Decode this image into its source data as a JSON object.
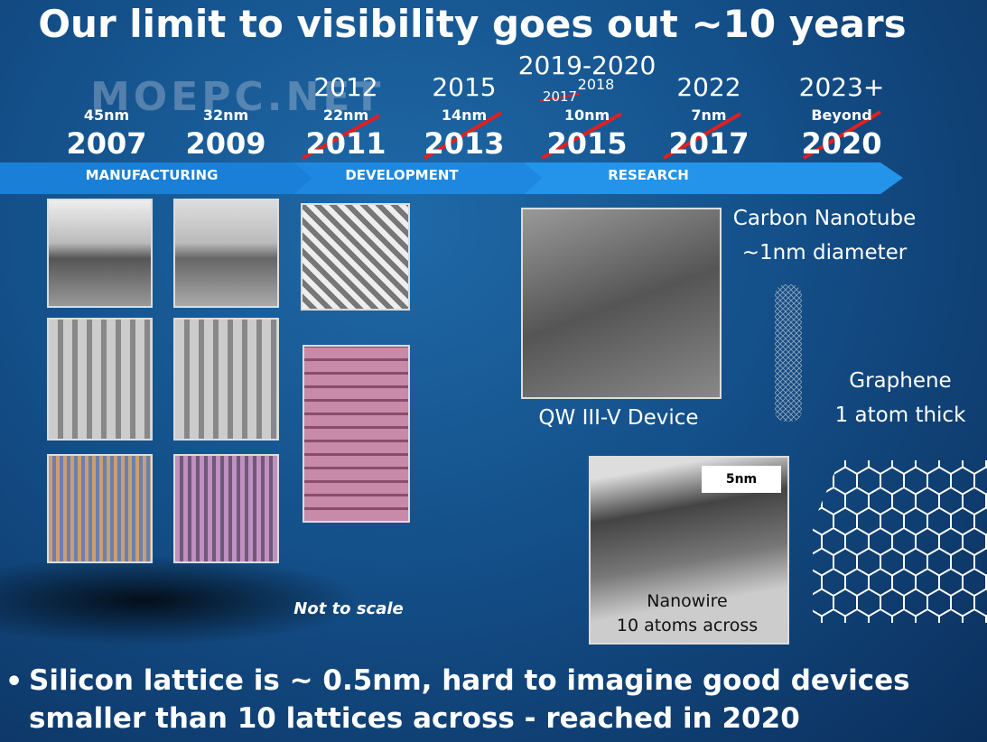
{
  "title": "Our limit to visibility goes out ~10 years",
  "watermark": "MOEPC.NET",
  "timeline": [
    {
      "node": "45nm",
      "year": "2007"
    },
    {
      "node": "32nm",
      "year": "2009"
    },
    {
      "new_year": "2012",
      "node": "22nm",
      "year": "2011"
    },
    {
      "new_year": "2015",
      "node": "14nm",
      "year": "2013"
    },
    {
      "new_year": "2019-2020",
      "interim_year": "2018",
      "earlier_year": "2017",
      "node": "10nm",
      "year": "2015"
    },
    {
      "new_year": "2022",
      "node": "7nm",
      "year": "2017"
    },
    {
      "new_year": "2023+",
      "node": "Beyond",
      "year": "2020"
    }
  ],
  "phases": [
    "MANUFACTURING",
    "DEVELOPMENT",
    "RESEARCH"
  ],
  "labels": {
    "carbon_nanotube": "Carbon Nanotube",
    "nanotube_size": "~1nm diameter",
    "graphene": "Graphene",
    "graphene_size": "1 atom thick",
    "qw_device": "QW III-V Device",
    "scale_bar": "5nm",
    "nanowire": "Nanowire",
    "nanowire_size": "10 atoms across",
    "not_to_scale": "Not to scale"
  },
  "bullet": [
    "Silicon lattice is ~ 0.5nm, hard to imagine good devices",
    "smaller than 10 lattices across - reached in 2020"
  ]
}
